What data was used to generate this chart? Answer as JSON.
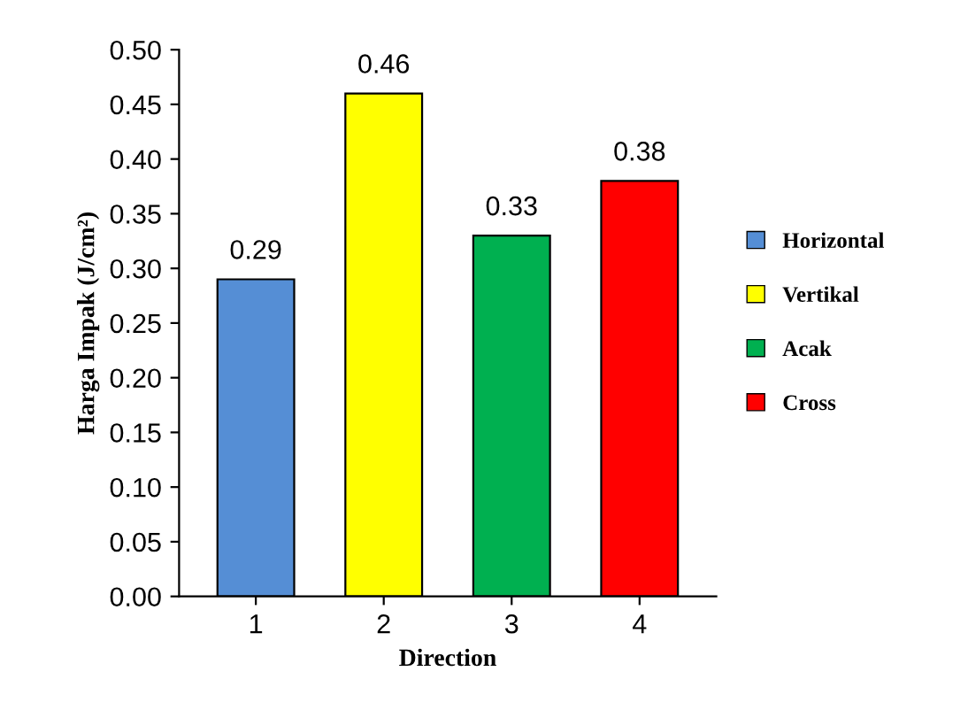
{
  "chart_data": {
    "type": "bar",
    "xlabel": "Direction",
    "ylabel": "Harga Impak (J/cm²)",
    "categories": [
      "1",
      "2",
      "3",
      "4"
    ],
    "series": [
      {
        "name": "Horizontal",
        "color": "#558ed5",
        "values": [
          0.29,
          null,
          null,
          null
        ]
      },
      {
        "name": "Vertikal",
        "color": "#ffff00",
        "values": [
          null,
          0.46,
          null,
          null
        ]
      },
      {
        "name": "Acak",
        "color": "#00b050",
        "values": [
          null,
          null,
          0.33,
          null
        ]
      },
      {
        "name": "Cross",
        "color": "#ff0000",
        "values": [
          null,
          null,
          null,
          0.38
        ]
      }
    ],
    "ylim": [
      0,
      0.5
    ],
    "yticks": [
      {
        "value": 0,
        "label": "0.00"
      },
      {
        "value": 0.05,
        "label": "0.05"
      },
      {
        "value": 0.1,
        "label": "0.10"
      },
      {
        "value": 0.15,
        "label": "0.15"
      },
      {
        "value": 0.2,
        "label": "0.20"
      },
      {
        "value": 0.25,
        "label": "0.25"
      },
      {
        "value": 0.3,
        "label": "0.30"
      },
      {
        "value": 0.35,
        "label": "0.35"
      },
      {
        "value": 0.4,
        "label": "0.40"
      },
      {
        "value": 0.45,
        "label": "0.45"
      },
      {
        "value": 0.5,
        "label": "0.50"
      }
    ],
    "data_labels": true,
    "legend": "right",
    "grid": false
  }
}
